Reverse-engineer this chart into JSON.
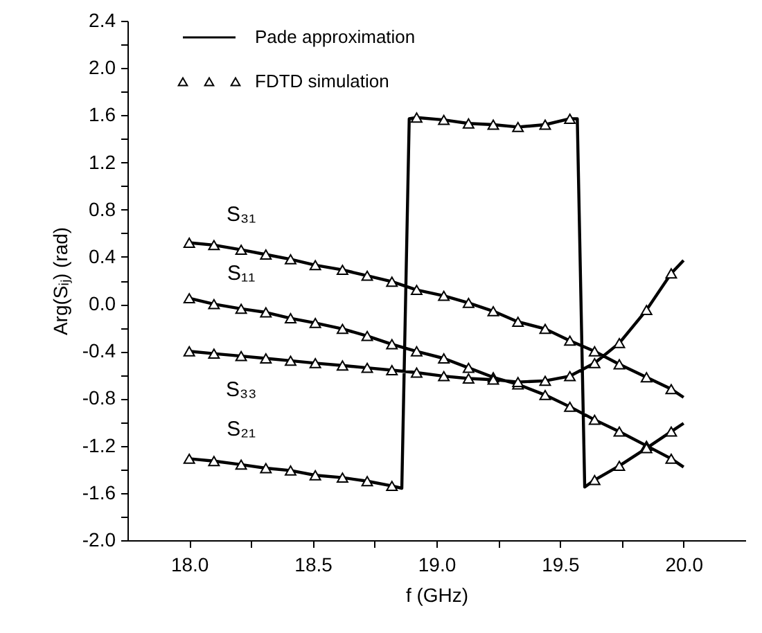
{
  "chart_data": {
    "type": "line",
    "xlabel": "f (GHz)",
    "ylabel": "Arg(Sᵢⱼ) (rad)",
    "xlim": [
      17.75,
      20.25
    ],
    "ylim": [
      -2.0,
      2.4
    ],
    "xticks": [
      {
        "value": 18.0,
        "label": "18.0"
      },
      {
        "value": 18.25,
        "label": null
      },
      {
        "value": 18.5,
        "label": "18.5"
      },
      {
        "value": 18.75,
        "label": null
      },
      {
        "value": 19.0,
        "label": "19.0"
      },
      {
        "value": 19.25,
        "label": null
      },
      {
        "value": 19.5,
        "label": "19.5"
      },
      {
        "value": 19.75,
        "label": null
      },
      {
        "value": 20.0,
        "label": "20.0"
      }
    ],
    "yticks": [
      {
        "value": -2.0,
        "label": "-2.0"
      },
      {
        "value": -1.8,
        "label": null
      },
      {
        "value": -1.6,
        "label": "-1.6"
      },
      {
        "value": -1.4,
        "label": null
      },
      {
        "value": -1.2,
        "label": "-1.2"
      },
      {
        "value": -1.0,
        "label": null
      },
      {
        "value": -0.8,
        "label": "-0.8"
      },
      {
        "value": -0.6,
        "label": null
      },
      {
        "value": -0.4,
        "label": "-0.4"
      },
      {
        "value": -0.2,
        "label": null
      },
      {
        "value": 0.0,
        "label": "0.0"
      },
      {
        "value": 0.2,
        "label": null
      },
      {
        "value": 0.4,
        "label": "0.4"
      },
      {
        "value": 0.6,
        "label": null
      },
      {
        "value": 0.8,
        "label": "0.8"
      },
      {
        "value": 1.0,
        "label": null
      },
      {
        "value": 1.2,
        "label": "1.2"
      },
      {
        "value": 1.4,
        "label": null
      },
      {
        "value": 1.6,
        "label": "1.6"
      },
      {
        "value": 1.8,
        "label": null
      },
      {
        "value": 2.0,
        "label": "2.0"
      },
      {
        "value": 2.2,
        "label": null
      },
      {
        "value": 2.4,
        "label": "2.4"
      }
    ],
    "grid": false,
    "legend": "top left",
    "annotations": [
      "S₃₁",
      "S₁₁",
      "S₃₃",
      "S₂₁"
    ],
    "series": [
      {
        "name": "Pade approximation",
        "color": "#000000",
        "line_style": "solid",
        "x": [
          18.0,
          18.1,
          18.21,
          18.31,
          18.41,
          18.51,
          18.62,
          18.72,
          18.82,
          18.92,
          19.03,
          19.13,
          19.23,
          19.33,
          19.44,
          19.54,
          19.64,
          19.74,
          19.85,
          19.95,
          20.0,
          null,
          18.0,
          18.1,
          18.21,
          18.31,
          18.41,
          18.51,
          18.62,
          18.72,
          18.82,
          18.92,
          19.03,
          19.13,
          19.23,
          19.33,
          19.44,
          19.54,
          19.64,
          19.74,
          19.85,
          19.95,
          20.0,
          null,
          18.0,
          18.1,
          18.21,
          18.31,
          18.41,
          18.51,
          18.62,
          18.72,
          18.82,
          18.92,
          19.03,
          19.13,
          19.23,
          19.33,
          19.44,
          19.54,
          19.64,
          19.74,
          19.85,
          19.95,
          20.0,
          null,
          18.0,
          18.1,
          18.21,
          18.31,
          18.41,
          18.51,
          18.62,
          18.72,
          18.82,
          18.86,
          18.89,
          18.92,
          19.03,
          19.13,
          19.23,
          19.33,
          19.44,
          19.54,
          19.57,
          19.6,
          19.64,
          19.74,
          19.85,
          19.95,
          20.0
        ],
        "values": [
          0.52,
          0.5,
          0.46,
          0.42,
          0.38,
          0.33,
          0.29,
          0.24,
          0.19,
          0.12,
          0.07,
          0.01,
          -0.06,
          -0.15,
          -0.21,
          -0.31,
          -0.4,
          -0.51,
          -0.62,
          -0.72,
          -0.79,
          null,
          0.05,
          0.0,
          -0.04,
          -0.07,
          -0.12,
          -0.16,
          -0.21,
          -0.27,
          -0.34,
          -0.4,
          -0.46,
          -0.54,
          -0.62,
          -0.68,
          -0.77,
          -0.87,
          -0.98,
          -1.08,
          -1.2,
          -1.31,
          -1.38,
          null,
          -0.4,
          -0.42,
          -0.44,
          -0.46,
          -0.48,
          -0.5,
          -0.52,
          -0.54,
          -0.56,
          -0.58,
          -0.61,
          -0.63,
          -0.64,
          -0.66,
          -0.65,
          -0.61,
          -0.5,
          -0.33,
          -0.05,
          0.26,
          0.37,
          null,
          -1.31,
          -1.33,
          -1.36,
          -1.39,
          -1.41,
          -1.45,
          -1.47,
          -1.5,
          -1.54,
          -1.56,
          1.57,
          1.58,
          1.56,
          1.53,
          1.52,
          1.5,
          1.52,
          1.57,
          1.57,
          -1.55,
          -1.49,
          -1.37,
          -1.22,
          -1.08,
          -1.01
        ]
      },
      {
        "name": "FDTD simulation",
        "type": "scatter",
        "color": "#000000",
        "marker": "triangle",
        "x": [
          18.0,
          18.1,
          18.21,
          18.31,
          18.41,
          18.51,
          18.62,
          18.72,
          18.82,
          18.92,
          19.03,
          19.13,
          19.23,
          19.33,
          19.44,
          19.54,
          19.64,
          19.74,
          19.85,
          19.95,
          18.0,
          18.1,
          18.21,
          18.31,
          18.41,
          18.51,
          18.62,
          18.72,
          18.82,
          18.92,
          19.03,
          19.13,
          19.23,
          19.33,
          19.44,
          19.54,
          19.64,
          19.74,
          19.85,
          19.95,
          18.0,
          18.1,
          18.21,
          18.31,
          18.41,
          18.51,
          18.62,
          18.72,
          18.82,
          18.92,
          19.03,
          19.13,
          19.23,
          19.33,
          19.44,
          19.54,
          19.64,
          19.74,
          19.85,
          19.95,
          18.0,
          18.1,
          18.21,
          18.31,
          18.41,
          18.51,
          18.62,
          18.72,
          18.82,
          18.92,
          19.03,
          19.13,
          19.23,
          19.33,
          19.44,
          19.54,
          19.64,
          19.74,
          19.85,
          19.95
        ],
        "values": [
          0.52,
          0.5,
          0.46,
          0.42,
          0.38,
          0.33,
          0.29,
          0.24,
          0.19,
          0.12,
          0.07,
          0.01,
          -0.06,
          -0.15,
          -0.21,
          -0.31,
          -0.4,
          -0.51,
          -0.62,
          -0.72,
          0.05,
          0.0,
          -0.04,
          -0.07,
          -0.12,
          -0.16,
          -0.21,
          -0.27,
          -0.34,
          -0.4,
          -0.46,
          -0.54,
          -0.62,
          -0.68,
          -0.77,
          -0.87,
          -0.98,
          -1.08,
          -1.2,
          -1.31,
          -0.4,
          -0.42,
          -0.44,
          -0.46,
          -0.48,
          -0.5,
          -0.52,
          -0.54,
          -0.56,
          -0.58,
          -0.61,
          -0.63,
          -0.64,
          -0.66,
          -0.65,
          -0.61,
          -0.5,
          -0.33,
          -0.05,
          0.26,
          -1.31,
          -1.33,
          -1.36,
          -1.39,
          -1.41,
          -1.45,
          -1.47,
          -1.5,
          -1.54,
          1.58,
          1.56,
          1.53,
          1.52,
          1.5,
          1.52,
          1.57,
          -1.49,
          -1.37,
          -1.22,
          -1.08
        ]
      }
    ]
  }
}
